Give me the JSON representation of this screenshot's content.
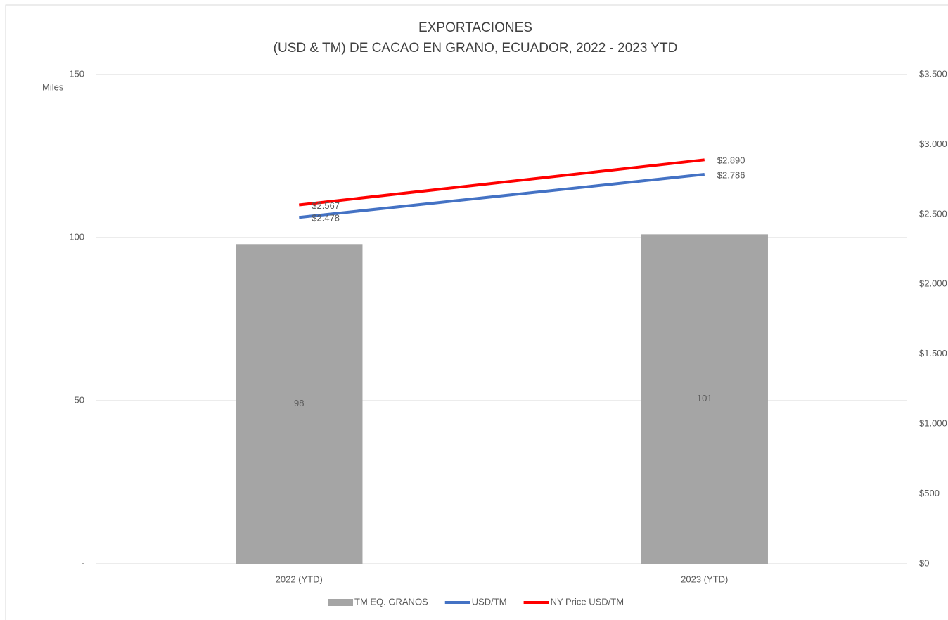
{
  "chart_data": {
    "type": "bar",
    "title": "EXPORTACIONES",
    "subtitle": "(USD & TM) DE CACAO EN GRANO, ECUADOR, 2022 - 2023 YTD",
    "y_axis_label": "Miles",
    "categories": [
      "2022 (YTD)",
      "2023 (YTD)"
    ],
    "series": [
      {
        "name": "TM EQ. GRANOS",
        "type": "bar",
        "color": "#a5a5a5",
        "values": [
          98,
          101
        ],
        "value_labels": [
          "98",
          "101"
        ]
      },
      {
        "name": "USD/TM",
        "type": "line",
        "axis": "y2",
        "color": "#4472c4",
        "values": [
          2478,
          2786
        ],
        "value_labels": [
          "$2.478",
          "$2.786"
        ]
      },
      {
        "name": "NY Price USD/TM",
        "type": "line",
        "axis": "y2",
        "color": "#ff0000",
        "values": [
          2567,
          2890
        ],
        "value_labels": [
          "$2.567",
          "$2.890"
        ]
      }
    ],
    "ylim": [
      0,
      150
    ],
    "yticks": [
      {
        "value": 0,
        "label": "-"
      },
      50,
      100,
      150
    ],
    "y2lim": [
      0,
      3500
    ],
    "y2ticks": [
      {
        "value": 0,
        "label": "$0"
      },
      {
        "value": 500,
        "label": "$500"
      },
      {
        "value": 1000,
        "label": "$1.000"
      },
      {
        "value": 1500,
        "label": "$1.500"
      },
      {
        "value": 2000,
        "label": "$2.000"
      },
      {
        "value": 2500,
        "label": "$2.500"
      },
      {
        "value": 3000,
        "label": "$3.000"
      },
      {
        "value": 3500,
        "label": "$3.500"
      }
    ],
    "grid": true,
    "legend": "bottom"
  }
}
